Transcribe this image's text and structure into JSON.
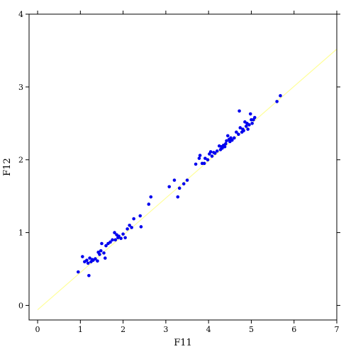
{
  "chart_data": {
    "type": "scatter",
    "title": "",
    "xlabel": "F11",
    "ylabel": "F12",
    "xlim": [
      -0.2,
      7.0
    ],
    "ylim": [
      -0.2,
      4.0
    ],
    "xticks": [
      0,
      1,
      2,
      3,
      4,
      5,
      6,
      7
    ],
    "yticks": [
      0,
      1,
      2,
      3,
      4
    ],
    "grid": false,
    "legend": "none",
    "point_color": "#0000ee",
    "line_color": "#ffff99",
    "fit_line": {
      "x": [
        0.0,
        7.0
      ],
      "y": [
        -0.06,
        3.52
      ]
    },
    "points": [
      [
        0.95,
        0.46
      ],
      [
        1.05,
        0.67
      ],
      [
        1.1,
        0.6
      ],
      [
        1.15,
        0.62
      ],
      [
        1.18,
        0.58
      ],
      [
        1.2,
        0.41
      ],
      [
        1.22,
        0.65
      ],
      [
        1.25,
        0.6
      ],
      [
        1.28,
        0.63
      ],
      [
        1.3,
        0.62
      ],
      [
        1.35,
        0.64
      ],
      [
        1.4,
        0.61
      ],
      [
        1.42,
        0.73
      ],
      [
        1.45,
        0.7
      ],
      [
        1.48,
        0.75
      ],
      [
        1.5,
        0.85
      ],
      [
        1.55,
        0.72
      ],
      [
        1.58,
        0.65
      ],
      [
        1.6,
        0.82
      ],
      [
        1.65,
        0.85
      ],
      [
        1.7,
        0.87
      ],
      [
        1.75,
        0.9
      ],
      [
        1.8,
        1.0
      ],
      [
        1.82,
        0.9
      ],
      [
        1.85,
        0.97
      ],
      [
        1.88,
        0.93
      ],
      [
        1.9,
        0.95
      ],
      [
        1.95,
        0.92
      ],
      [
        2.0,
        0.98
      ],
      [
        2.05,
        0.93
      ],
      [
        2.1,
        1.05
      ],
      [
        2.15,
        1.1
      ],
      [
        2.2,
        1.07
      ],
      [
        2.25,
        1.19
      ],
      [
        2.4,
        1.23
      ],
      [
        2.42,
        1.08
      ],
      [
        2.6,
        1.39
      ],
      [
        2.65,
        1.49
      ],
      [
        3.08,
        1.63
      ],
      [
        3.2,
        1.72
      ],
      [
        3.28,
        1.49
      ],
      [
        3.32,
        1.61
      ],
      [
        3.42,
        1.67
      ],
      [
        3.5,
        1.72
      ],
      [
        3.7,
        1.94
      ],
      [
        3.78,
        2.02
      ],
      [
        3.8,
        2.06
      ],
      [
        3.85,
        1.95
      ],
      [
        3.9,
        1.95
      ],
      [
        3.92,
        2.02
      ],
      [
        3.98,
        2.0
      ],
      [
        4.02,
        2.08
      ],
      [
        4.05,
        2.11
      ],
      [
        4.08,
        2.05
      ],
      [
        4.12,
        2.1
      ],
      [
        4.15,
        2.09
      ],
      [
        4.2,
        2.12
      ],
      [
        4.25,
        2.19
      ],
      [
        4.28,
        2.14
      ],
      [
        4.3,
        2.18
      ],
      [
        4.32,
        2.16
      ],
      [
        4.35,
        2.2
      ],
      [
        4.38,
        2.18
      ],
      [
        4.4,
        2.22
      ],
      [
        4.42,
        2.26
      ],
      [
        4.45,
        2.33
      ],
      [
        4.48,
        2.28
      ],
      [
        4.5,
        2.25
      ],
      [
        4.52,
        2.3
      ],
      [
        4.55,
        2.27
      ],
      [
        4.6,
        2.3
      ],
      [
        4.65,
        2.38
      ],
      [
        4.7,
        2.35
      ],
      [
        4.72,
        2.67
      ],
      [
        4.74,
        2.44
      ],
      [
        4.78,
        2.38
      ],
      [
        4.8,
        2.42
      ],
      [
        4.82,
        2.4
      ],
      [
        4.85,
        2.52
      ],
      [
        4.88,
        2.46
      ],
      [
        4.9,
        2.5
      ],
      [
        4.92,
        2.42
      ],
      [
        4.95,
        2.48
      ],
      [
        4.98,
        2.63
      ],
      [
        5.0,
        2.55
      ],
      [
        5.02,
        2.5
      ],
      [
        5.05,
        2.55
      ],
      [
        5.08,
        2.58
      ],
      [
        5.6,
        2.8
      ],
      [
        5.68,
        2.88
      ]
    ]
  }
}
